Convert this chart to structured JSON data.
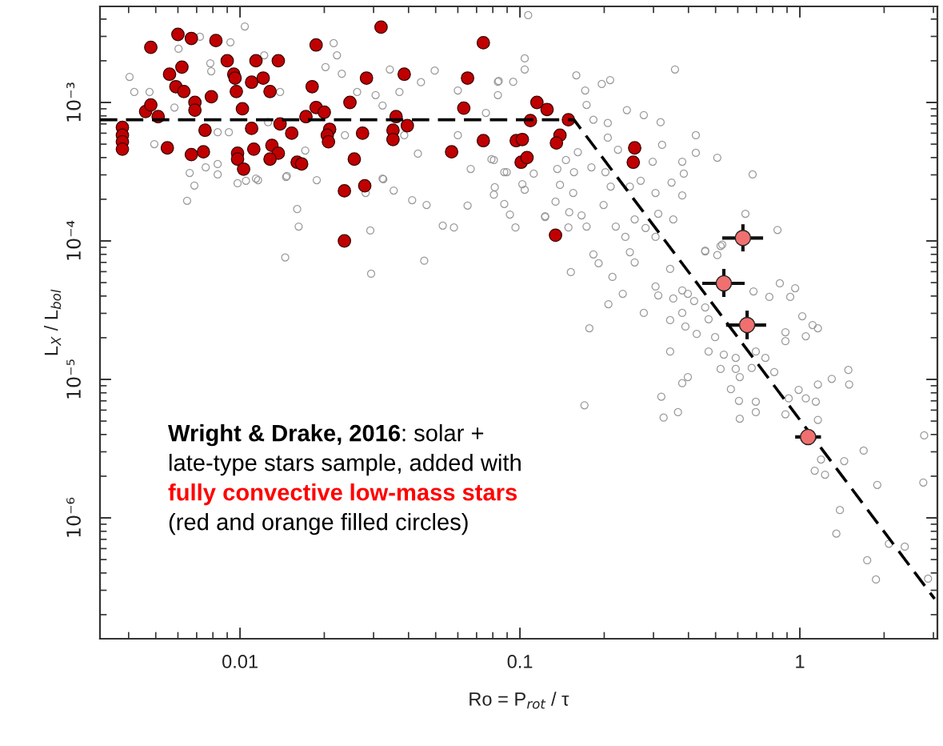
{
  "chart_data": {
    "type": "scatter",
    "xlabel": "Ro = P$_{rot}$ / τ",
    "ylabel": "L$_{X}$ / L$_{bol}$",
    "log": "xy",
    "xlim": [
      0.00316,
      3.1
    ],
    "ylim": [
      1.34e-07,
      0.00494
    ],
    "xticks": [
      0.01,
      0.1,
      1
    ],
    "yticks": [
      {
        "value": 1e-06,
        "label": "10⁻⁶"
      },
      {
        "value": 1e-05,
        "label": "10⁻⁵"
      },
      {
        "value": 0.0001,
        "label": "10⁻⁴"
      },
      {
        "value": 0.001,
        "label": "10⁻³"
      }
    ],
    "grid": false,
    "marker": "circle",
    "annotations": [
      "Wright & Drake, 2016",
      ": solar + late-type stars sample, added with",
      "fully convective low-mass stars",
      "(red and orange filled circles)"
    ],
    "series": [
      {
        "color": "#9a9a9a",
        "x": [
          0.00403,
          0.00419,
          0.00475,
          0.00494,
          0.00603,
          0.00583,
          0.00647,
          0.00687,
          0.00661,
          0.00719,
          0.00783,
          0.00789,
          0.00754,
          0.00832,
          0.00832,
          0.00924,
          0.00912,
          0.0098,
          0.0104,
          0.0105,
          0.0116,
          0.0122,
          0.0126,
          0.0139,
          0.0147,
          0.016,
          0.0162,
          0.0145,
          0.0171,
          0.0188,
          0.0202,
          0.0216,
          0.0222,
          0.0231,
          0.0237,
          0.0262,
          0.0281,
          0.0292,
          0.0305,
          0.0323,
          0.0325,
          0.0343,
          0.0354,
          0.0371,
          0.0412,
          0.0443,
          0.0464,
          0.0455,
          0.0496,
          0.053,
          0.0581,
          0.06,
          0.065,
          0.0667,
          0.0834,
          0.0813,
          0.0879,
          0.0921,
          0.0964,
          0.104,
          0.104,
          0.107,
          0.123,
          0.149,
          0.0791,
          0.0879,
          0.102,
          0.0386,
          0.06,
          0.0432,
          0.084,
          0.159,
          0.21,
          0.196,
          0.358,
          0.171,
          0.173,
          0.241,
          0.277,
          0.183,
          0.206,
          0.318,
          0.425,
          0.425,
          0.507,
          0.678,
          0.38,
          0.385,
          0.38,
          0.348,
          0.298,
          0.322,
          0.206,
          0.224,
          0.161,
          0.18,
          0.202,
          0.211,
          0.247,
          0.27,
          0.305,
          0.199,
          0.155,
          0.156,
          0.146,
          0.136,
          0.139,
          0.134,
          0.15,
          0.166,
          0.173,
          0.22,
          0.238,
          0.257,
          0.281,
          0.312,
          0.353,
          0.305,
          0.639,
          0.832,
          0.459,
          0.521,
          0.183,
          0.123,
          0.0807,
          0.112,
          0.0834,
          0.0946,
          0.0756,
          0.0807,
          0.0897,
          0.104,
          0.152,
          0.191,
          0.214,
          0.233,
          0.207,
          0.277,
          0.177,
          0.17,
          0.247,
          0.257,
          0.305,
          0.344,
          0.459,
          0.507,
          0.528,
          0.312,
          0.353,
          0.38,
          0.398,
          0.419,
          0.459,
          0.38,
          0.344,
          0.39,
          0.428,
          0.472,
          0.498,
          0.344,
          0.472,
          0.535,
          0.521,
          0.59,
          0.59,
          0.61,
          0.673,
          0.696,
          0.753,
          0.398,
          0.38,
          0.32,
          0.367,
          0.326,
          0.567,
          0.606,
          0.61,
          0.696,
          0.696,
          0.888,
          0.912,
          0.81,
          0.848,
          0.962,
          0.924,
          0.778,
          0.683,
          1.02,
          1.11,
          1.16,
          1.05,
          0.888,
          0.888,
          0.99,
          1.05,
          1.14,
          1.16,
          1.3,
          1.49,
          1.5,
          1.16,
          1.19,
          1.13,
          1.23,
          1.44,
          1.69,
          1.89,
          1.39,
          1.35,
          1.74,
          1.87,
          2.08,
          2.37,
          2.78,
          2.76,
          2.87,
          0.00832,
          0.0114,
          0.0146,
          0.0294,
          0.0323
        ],
        "values": [
          0.00153,
          0.00119,
          0.00119,
          0.0005,
          0.00244,
          0.00092,
          0.000195,
          0.000251,
          0.00031,
          0.00298,
          0.00192,
          0.00168,
          0.00034,
          0.000302,
          0.00061,
          0.00272,
          0.00061,
          0.000261,
          0.00354,
          0.000272,
          0.000275,
          0.00219,
          0.00072,
          0.00119,
          0.000294,
          0.00017,
          0.000127,
          7.6e-05,
          0.00045,
          0.000275,
          0.0018,
          0.00268,
          0.00219,
          0.00161,
          0.00058,
          0.00119,
          0.000222,
          0.000119,
          0.00113,
          0.00095,
          0.000279,
          0.00173,
          0.000231,
          0.00119,
          0.000197,
          0.0014,
          0.000182,
          7.2e-05,
          0.0017,
          0.000129,
          0.000125,
          0.00122,
          0.00018,
          0.000331,
          0.00141,
          0.000244,
          0.000185,
          0.000155,
          0.000125,
          0.00208,
          0.00173,
          0.00427,
          0.000151,
          0.000125,
          0.000389,
          0.000314,
          0.000257,
          0.00058,
          0.00058,
          0.000427,
          0.00143,
          0.00157,
          0.00145,
          0.00136,
          0.00173,
          0.00122,
          0.00096,
          0.00088,
          0.00081,
          0.00075,
          0.00071,
          0.00072,
          0.00058,
          0.000433,
          0.000399,
          0.000302,
          0.000373,
          0.000306,
          0.000213,
          0.000264,
          0.000373,
          0.000494,
          0.000557,
          0.000456,
          0.000438,
          0.00034,
          0.000314,
          0.000247,
          0.000247,
          0.000272,
          0.000222,
          0.000182,
          0.000222,
          0.000314,
          0.000384,
          0.000331,
          0.000254,
          0.000192,
          0.000161,
          0.000153,
          0.000127,
          0.000127,
          0.000107,
          0.000143,
          0.000124,
          0.000157,
          0.000143,
          0.000107,
          0.000157,
          0.00012,
          8.4e-05,
          9.2e-05,
          8e-05,
          0.000149,
          0.000216,
          0.000306,
          0.00113,
          0.00141,
          0.00084,
          0.000384,
          0.000314,
          0.000234,
          5.96e-05,
          6.9e-05,
          5.5e-05,
          4.15e-05,
          3.49e-05,
          3.02e-05,
          2.34e-05,
          6.5e-06,
          8.3e-05,
          7e-05,
          4.69e-05,
          6.28e-05,
          8.5e-05,
          7.9e-05,
          9.4e-05,
          4.04e-05,
          3.84e-05,
          4.39e-05,
          4.15e-05,
          3.68e-05,
          3.31e-05,
          3.02e-05,
          2.68e-05,
          2.41e-05,
          2.13e-05,
          2.72e-05,
          2.02e-05,
          1.59e-05,
          1.59e-05,
          1.51e-05,
          1.19e-05,
          1.43e-05,
          1.19e-05,
          1.04e-05,
          1.21e-05,
          1.59e-05,
          1.43e-05,
          1.04e-05,
          9.4e-06,
          7.5e-06,
          5.8e-06,
          5.3e-06,
          8.5e-06,
          7e-06,
          5.2e-06,
          6.9e-06,
          5.8e-06,
          5.6e-06,
          7.3e-06,
          1.13e-05,
          4.94e-05,
          4.56e-05,
          3.94e-05,
          3.94e-05,
          4.32e-05,
          2.86e-05,
          2.47e-05,
          2.34e-05,
          2.05e-05,
          2.19e-05,
          1.89e-05,
          8.4e-06,
          7.3e-06,
          6.9e-06,
          9.2e-06,
          1.01e-05,
          1.17e-05,
          9.2e-06,
          5.1e-06,
          2.64e-06,
          2.19e-06,
          2.05e-06,
          2.57e-06,
          3.06e-06,
          1.73e-06,
          1.14e-06,
          7.7e-07,
          4.94e-07,
          3.59e-07,
          6.5e-07,
          6.2e-07,
          3.94e-06,
          1.8e-06,
          3.64e-07,
          0.000359,
          0.000282,
          0.00029,
          5.8e-05,
          0.000282
        ]
      },
      {
        "color": "#c00000",
        "x": [
          0.0038,
          0.0038,
          0.0038,
          0.0038,
          0.0048,
          0.0046,
          0.0048,
          0.0051,
          0.006,
          0.0067,
          0.0082,
          0.0056,
          0.0059,
          0.0062,
          0.0063,
          0.0069,
          0.0069,
          0.0055,
          0.0067,
          0.0074,
          0.0075,
          0.0079,
          0.009,
          0.0095,
          0.0096,
          0.0097,
          0.0102,
          0.011,
          0.011,
          0.0112,
          0.0098,
          0.0098,
          0.0103,
          0.0114,
          0.0121,
          0.0128,
          0.0137,
          0.013,
          0.0137,
          0.0128,
          0.0139,
          0.0153,
          0.016,
          0.0166,
          0.0172,
          0.0187,
          0.0181,
          0.0187,
          0.02,
          0.0209,
          0.0205,
          0.0207,
          0.0236,
          0.0236,
          0.0256,
          0.0274,
          0.0279,
          0.0247,
          0.0283,
          0.0319,
          0.0361,
          0.0352,
          0.0352,
          0.0396,
          0.0386,
          0.057,
          0.063,
          0.065,
          0.074,
          0.074,
          0.097,
          0.102,
          0.101,
          0.106,
          0.115,
          0.125,
          0.109,
          0.139,
          0.135,
          0.134,
          0.149,
          0.257,
          0.254
        ],
        "values": [
          0.00066,
          0.00058,
          0.00052,
          0.00046,
          0.0025,
          0.00086,
          0.00096,
          0.00079,
          0.0031,
          0.0029,
          0.0028,
          0.0016,
          0.0013,
          0.0018,
          0.0012,
          0.001,
          0.00088,
          0.00047,
          0.00042,
          0.00044,
          0.00063,
          0.0011,
          0.002,
          0.0016,
          0.0015,
          0.0012,
          0.0009,
          0.0014,
          0.00065,
          0.00046,
          0.00043,
          0.00039,
          0.00033,
          0.002,
          0.0015,
          0.0012,
          0.002,
          0.00049,
          0.00043,
          0.00039,
          0.0007,
          0.0006,
          0.00037,
          0.00036,
          0.00079,
          0.0026,
          0.0013,
          0.00092,
          0.00085,
          0.00064,
          0.00058,
          0.00052,
          0.0001,
          0.00023,
          0.00039,
          0.0006,
          0.00025,
          0.001,
          0.0015,
          0.0035,
          0.00079,
          0.00063,
          0.00054,
          0.00068,
          0.0016,
          0.00044,
          0.00091,
          0.0015,
          0.0027,
          0.00053,
          0.00053,
          0.00054,
          0.00037,
          0.0004,
          0.001,
          0.00089,
          0.00074,
          0.00058,
          0.00051,
          0.00011,
          0.00075,
          0.00047,
          0.00037
        ]
      },
      {
        "color": "#f07070",
        "x": [
          0.626,
          0.535,
          0.648,
          1.07
        ],
        "values": [
          0.000105,
          4.94e-05,
          2.47e-05,
          3.84e-06
        ],
        "errors": [
          [
            8.4e-05,
            0.000132
          ],
          [
            3.94e-05,
            6.28e-05
          ],
          [
            1.95e-05,
            3.14e-05
          ],
          null
        ],
        "xerrors": [
          [
            0.528,
            0.739
          ],
          [
            0.448,
            0.635
          ],
          [
            0.545,
            0.758
          ],
          [
            0.962,
            1.19
          ]
        ]
      },
      {
        "type": "line",
        "color": "#000000",
        "line_style": "dashed",
        "marker": "none",
        "x": [
          0.00316,
          0.156,
          3.03
        ],
        "values": [
          0.00075,
          0.00075,
          2.6e-07
        ]
      }
    ]
  }
}
